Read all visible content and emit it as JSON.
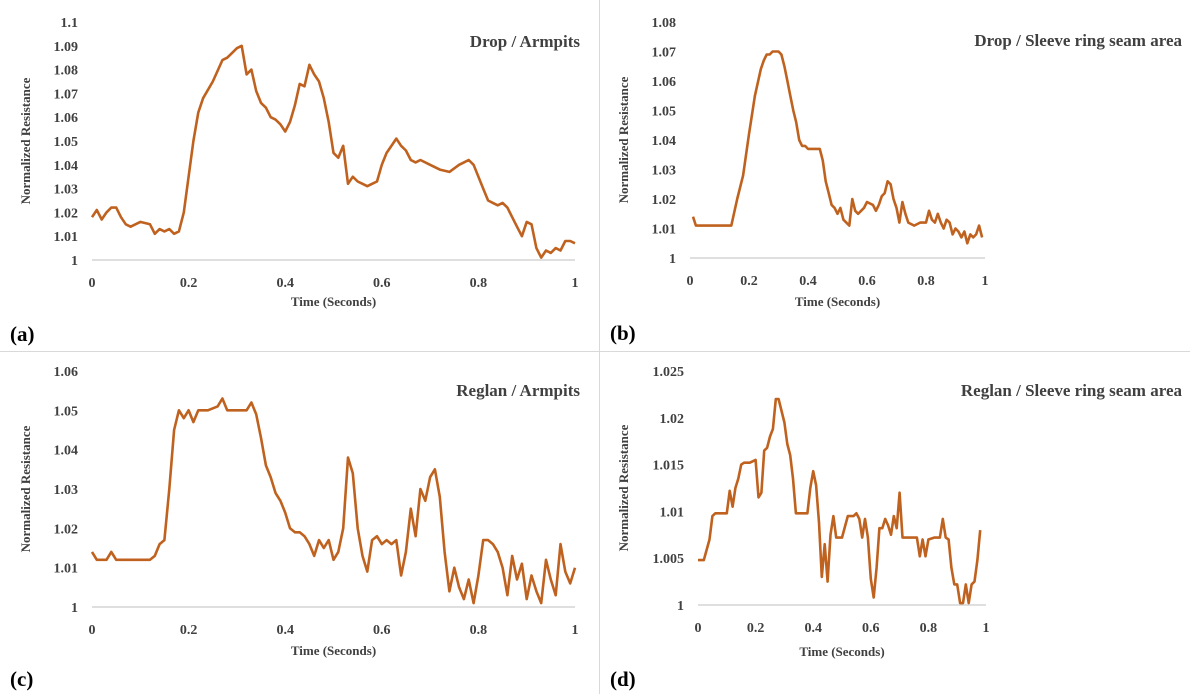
{
  "chart_data": [
    {
      "type": "line",
      "title": "Drop / Armpits",
      "xlabel": "Time (Seconds)",
      "ylabel": "Normalized Resistance",
      "panel_label": "(a)",
      "xlim": [
        0,
        1
      ],
      "ylim": [
        1,
        1.1
      ],
      "xticks": [
        "0",
        "0.2",
        "0.4",
        "0.6",
        "0.8",
        "1"
      ],
      "xtick_values": [
        0,
        0.2,
        0.4,
        0.6,
        0.8,
        1
      ],
      "yticks": [
        "1",
        "1.01",
        "1.02",
        "1.03",
        "1.04",
        "1.05",
        "1.06",
        "1.07",
        "1.08",
        "1.09",
        "1.1"
      ],
      "ytick_values": [
        1,
        1.01,
        1.02,
        1.03,
        1.04,
        1.05,
        1.06,
        1.07,
        1.08,
        1.09,
        1.1
      ],
      "grid": false,
      "color": "#c0621f",
      "series": [
        {
          "x": [
            0,
            0.01,
            0.02,
            0.03,
            0.04,
            0.05,
            0.06,
            0.07,
            0.08,
            0.1,
            0.12,
            0.13,
            0.14,
            0.15,
            0.16,
            0.17,
            0.18,
            0.19,
            0.2,
            0.21,
            0.22,
            0.23,
            0.25,
            0.27,
            0.28,
            0.29,
            0.3,
            0.31,
            0.32,
            0.33,
            0.34,
            0.35,
            0.36,
            0.37,
            0.38,
            0.39,
            0.4,
            0.41,
            0.42,
            0.43,
            0.44,
            0.45,
            0.46,
            0.47,
            0.48,
            0.49,
            0.5,
            0.51,
            0.52,
            0.53,
            0.54,
            0.55,
            0.56,
            0.57,
            0.58,
            0.59,
            0.6,
            0.61,
            0.62,
            0.63,
            0.64,
            0.65,
            0.66,
            0.67,
            0.68,
            0.7,
            0.72,
            0.74,
            0.76,
            0.77,
            0.78,
            0.79,
            0.8,
            0.81,
            0.82,
            0.83,
            0.84,
            0.85,
            0.86,
            0.87,
            0.88,
            0.89,
            0.9,
            0.91,
            0.92,
            0.93,
            0.94,
            0.95,
            0.96,
            0.97,
            0.98,
            0.99,
            1
          ],
          "y": [
            1.018,
            1.021,
            1.017,
            1.02,
            1.022,
            1.022,
            1.018,
            1.015,
            1.014,
            1.016,
            1.015,
            1.011,
            1.013,
            1.012,
            1.013,
            1.011,
            1.012,
            1.02,
            1.035,
            1.05,
            1.062,
            1.068,
            1.075,
            1.084,
            1.085,
            1.087,
            1.089,
            1.09,
            1.078,
            1.08,
            1.071,
            1.066,
            1.064,
            1.06,
            1.059,
            1.057,
            1.054,
            1.058,
            1.065,
            1.074,
            1.073,
            1.082,
            1.078,
            1.075,
            1.068,
            1.058,
            1.045,
            1.043,
            1.048,
            1.032,
            1.035,
            1.033,
            1.032,
            1.031,
            1.032,
            1.033,
            1.04,
            1.045,
            1.048,
            1.051,
            1.048,
            1.046,
            1.042,
            1.041,
            1.042,
            1.04,
            1.038,
            1.037,
            1.04,
            1.041,
            1.042,
            1.04,
            1.035,
            1.03,
            1.025,
            1.024,
            1.023,
            1.024,
            1.022,
            1.018,
            1.014,
            1.01,
            1.016,
            1.015,
            1.005,
            1.001,
            1.004,
            1.003,
            1.005,
            1.004,
            1.008,
            1.008,
            1.007
          ]
        }
      ]
    },
    {
      "type": "line",
      "title": "Drop / Sleeve ring seam area",
      "xlabel": "Time (Seconds)",
      "ylabel": "Normalized Resistance",
      "panel_label": "(b)",
      "xlim": [
        0,
        1
      ],
      "ylim": [
        1,
        1.08
      ],
      "xticks": [
        "0",
        "0.2",
        "0.4",
        "0.6",
        "0.8",
        "1"
      ],
      "xtick_values": [
        0,
        0.2,
        0.4,
        0.6,
        0.8,
        1
      ],
      "yticks": [
        "1",
        "1.01",
        "1.02",
        "1.03",
        "1.04",
        "1.05",
        "1.06",
        "1.07",
        "1.08"
      ],
      "ytick_values": [
        1,
        1.01,
        1.02,
        1.03,
        1.04,
        1.05,
        1.06,
        1.07,
        1.08
      ],
      "grid": false,
      "color": "#c0621f",
      "series": [
        {
          "x": [
            0.01,
            0.02,
            0.04,
            0.08,
            0.12,
            0.14,
            0.16,
            0.18,
            0.2,
            0.22,
            0.24,
            0.25,
            0.26,
            0.27,
            0.28,
            0.3,
            0.31,
            0.32,
            0.33,
            0.34,
            0.35,
            0.36,
            0.37,
            0.38,
            0.39,
            0.4,
            0.42,
            0.44,
            0.45,
            0.46,
            0.47,
            0.48,
            0.49,
            0.5,
            0.51,
            0.52,
            0.53,
            0.54,
            0.55,
            0.56,
            0.57,
            0.58,
            0.59,
            0.6,
            0.62,
            0.63,
            0.64,
            0.65,
            0.66,
            0.67,
            0.68,
            0.69,
            0.7,
            0.71,
            0.72,
            0.73,
            0.74,
            0.76,
            0.78,
            0.8,
            0.81,
            0.82,
            0.83,
            0.84,
            0.85,
            0.86,
            0.87,
            0.88,
            0.89,
            0.9,
            0.91,
            0.92,
            0.93,
            0.94,
            0.95,
            0.96,
            0.97,
            0.98,
            0.99
          ],
          "y": [
            1.014,
            1.011,
            1.011,
            1.011,
            1.011,
            1.011,
            1.02,
            1.028,
            1.042,
            1.055,
            1.064,
            1.067,
            1.069,
            1.069,
            1.07,
            1.07,
            1.069,
            1.065,
            1.06,
            1.055,
            1.05,
            1.046,
            1.04,
            1.038,
            1.038,
            1.037,
            1.037,
            1.037,
            1.033,
            1.026,
            1.022,
            1.018,
            1.017,
            1.015,
            1.017,
            1.013,
            1.012,
            1.011,
            1.02,
            1.016,
            1.015,
            1.016,
            1.017,
            1.019,
            1.018,
            1.016,
            1.018,
            1.021,
            1.022,
            1.026,
            1.025,
            1.02,
            1.017,
            1.012,
            1.019,
            1.015,
            1.012,
            1.011,
            1.012,
            1.012,
            1.016,
            1.013,
            1.012,
            1.015,
            1.012,
            1.01,
            1.013,
            1.012,
            1.008,
            1.01,
            1.009,
            1.007,
            1.009,
            1.005,
            1.008,
            1.007,
            1.008,
            1.011,
            1.007
          ]
        }
      ]
    },
    {
      "type": "line",
      "title": "Reglan / Armpits",
      "xlabel": "Time (Seconds)",
      "ylabel": "Normalized Resistance",
      "panel_label": "(c)",
      "xlim": [
        0,
        1
      ],
      "ylim": [
        1,
        1.06
      ],
      "xticks": [
        "0",
        "0.2",
        "0.4",
        "0.6",
        "0.8",
        "1"
      ],
      "xtick_values": [
        0,
        0.2,
        0.4,
        0.6,
        0.8,
        1
      ],
      "yticks": [
        "1",
        "1.01",
        "1.02",
        "1.03",
        "1.04",
        "1.05",
        "1.06"
      ],
      "ytick_values": [
        1,
        1.01,
        1.02,
        1.03,
        1.04,
        1.05,
        1.06
      ],
      "grid": false,
      "color": "#c0621f",
      "series": [
        {
          "x": [
            0,
            0.01,
            0.03,
            0.04,
            0.05,
            0.06,
            0.08,
            0.1,
            0.12,
            0.13,
            0.14,
            0.15,
            0.16,
            0.17,
            0.18,
            0.19,
            0.2,
            0.21,
            0.22,
            0.24,
            0.26,
            0.27,
            0.28,
            0.3,
            0.32,
            0.33,
            0.34,
            0.35,
            0.36,
            0.37,
            0.38,
            0.39,
            0.4,
            0.41,
            0.42,
            0.43,
            0.44,
            0.45,
            0.46,
            0.47,
            0.48,
            0.49,
            0.5,
            0.51,
            0.52,
            0.53,
            0.54,
            0.55,
            0.56,
            0.57,
            0.58,
            0.59,
            0.6,
            0.61,
            0.62,
            0.63,
            0.64,
            0.65,
            0.66,
            0.67,
            0.68,
            0.69,
            0.7,
            0.71,
            0.72,
            0.73,
            0.74,
            0.75,
            0.76,
            0.77,
            0.78,
            0.79,
            0.8,
            0.81,
            0.82,
            0.83,
            0.84,
            0.85,
            0.86,
            0.87,
            0.88,
            0.89,
            0.9,
            0.91,
            0.92,
            0.93,
            0.94,
            0.95,
            0.96,
            0.97,
            0.98,
            0.99,
            1
          ],
          "y": [
            1.014,
            1.012,
            1.012,
            1.014,
            1.012,
            1.012,
            1.012,
            1.012,
            1.012,
            1.013,
            1.016,
            1.017,
            1.03,
            1.045,
            1.05,
            1.048,
            1.05,
            1.047,
            1.05,
            1.05,
            1.051,
            1.053,
            1.05,
            1.05,
            1.05,
            1.052,
            1.049,
            1.043,
            1.036,
            1.033,
            1.029,
            1.027,
            1.024,
            1.02,
            1.019,
            1.019,
            1.018,
            1.016,
            1.013,
            1.017,
            1.015,
            1.017,
            1.012,
            1.014,
            1.02,
            1.038,
            1.034,
            1.02,
            1.013,
            1.009,
            1.017,
            1.018,
            1.016,
            1.017,
            1.016,
            1.017,
            1.008,
            1.014,
            1.025,
            1.018,
            1.03,
            1.027,
            1.033,
            1.035,
            1.028,
            1.014,
            1.004,
            1.01,
            1.005,
            1.002,
            1.007,
            1.001,
            1.008,
            1.017,
            1.017,
            1.016,
            1.014,
            1.01,
            1.003,
            1.013,
            1.007,
            1.011,
            1.002,
            1.008,
            1.004,
            1.001,
            1.012,
            1.007,
            1.003,
            1.016,
            1.009,
            1.006,
            1.01
          ]
        }
      ]
    },
    {
      "type": "line",
      "title": "Reglan / Sleeve ring seam area",
      "xlabel": "Time (Seconds)",
      "ylabel": "Normalized Resistance",
      "panel_label": "(d)",
      "xlim": [
        0,
        1
      ],
      "ylim": [
        1,
        1.025
      ],
      "xticks": [
        "0",
        "0.2",
        "0.4",
        "0.6",
        "0.8",
        "1"
      ],
      "xtick_values": [
        0,
        0.2,
        0.4,
        0.6,
        0.8,
        1
      ],
      "yticks": [
        "1",
        "1.005",
        "1.01",
        "1.015",
        "1.02",
        "1.025"
      ],
      "ytick_values": [
        1,
        1.005,
        1.01,
        1.015,
        1.02,
        1.025
      ],
      "grid": false,
      "color": "#c0621f",
      "series": [
        {
          "x": [
            0,
            0.02,
            0.04,
            0.05,
            0.06,
            0.08,
            0.1,
            0.11,
            0.12,
            0.13,
            0.14,
            0.15,
            0.16,
            0.18,
            0.2,
            0.21,
            0.22,
            0.23,
            0.24,
            0.25,
            0.26,
            0.27,
            0.28,
            0.3,
            0.31,
            0.32,
            0.33,
            0.34,
            0.35,
            0.36,
            0.38,
            0.39,
            0.4,
            0.41,
            0.42,
            0.43,
            0.44,
            0.45,
            0.46,
            0.47,
            0.48,
            0.5,
            0.52,
            0.54,
            0.55,
            0.56,
            0.57,
            0.58,
            0.59,
            0.6,
            0.61,
            0.62,
            0.63,
            0.64,
            0.65,
            0.66,
            0.67,
            0.68,
            0.69,
            0.7,
            0.71,
            0.72,
            0.74,
            0.76,
            0.77,
            0.78,
            0.79,
            0.8,
            0.82,
            0.84,
            0.85,
            0.86,
            0.87,
            0.88,
            0.89,
            0.9,
            0.91,
            0.92,
            0.93,
            0.94,
            0.95,
            0.96,
            0.97,
            0.98
          ],
          "y": [
            1.0048,
            1.0048,
            1.007,
            1.0095,
            1.0098,
            1.0098,
            1.0098,
            1.0122,
            1.0105,
            1.0125,
            1.0135,
            1.015,
            1.0152,
            1.0152,
            1.0155,
            1.0115,
            1.012,
            1.0165,
            1.0168,
            1.018,
            1.0188,
            1.022,
            1.022,
            1.0195,
            1.0172,
            1.016,
            1.0135,
            1.0098,
            1.0098,
            1.0098,
            1.0098,
            1.0125,
            1.0143,
            1.0128,
            1.0088,
            1.003,
            1.0065,
            1.0025,
            1.0075,
            1.0095,
            1.0072,
            1.0072,
            1.0095,
            1.0095,
            1.0098,
            1.0092,
            1.0072,
            1.0092,
            1.0072,
            1.0028,
            1.0008,
            1.004,
            1.0082,
            1.0082,
            1.0092,
            1.0085,
            1.0075,
            1.0095,
            1.0082,
            1.012,
            1.0072,
            1.0072,
            1.0072,
            1.0072,
            1.0052,
            1.007,
            1.0052,
            1.007,
            1.0072,
            1.0072,
            1.0092,
            1.0072,
            1.007,
            1.004,
            1.0022,
            1.0022,
            1.0002,
            1.0002,
            1.0022,
            1.0002,
            1.0022,
            1.0025,
            1.0048,
            1.008
          ]
        }
      ]
    }
  ]
}
